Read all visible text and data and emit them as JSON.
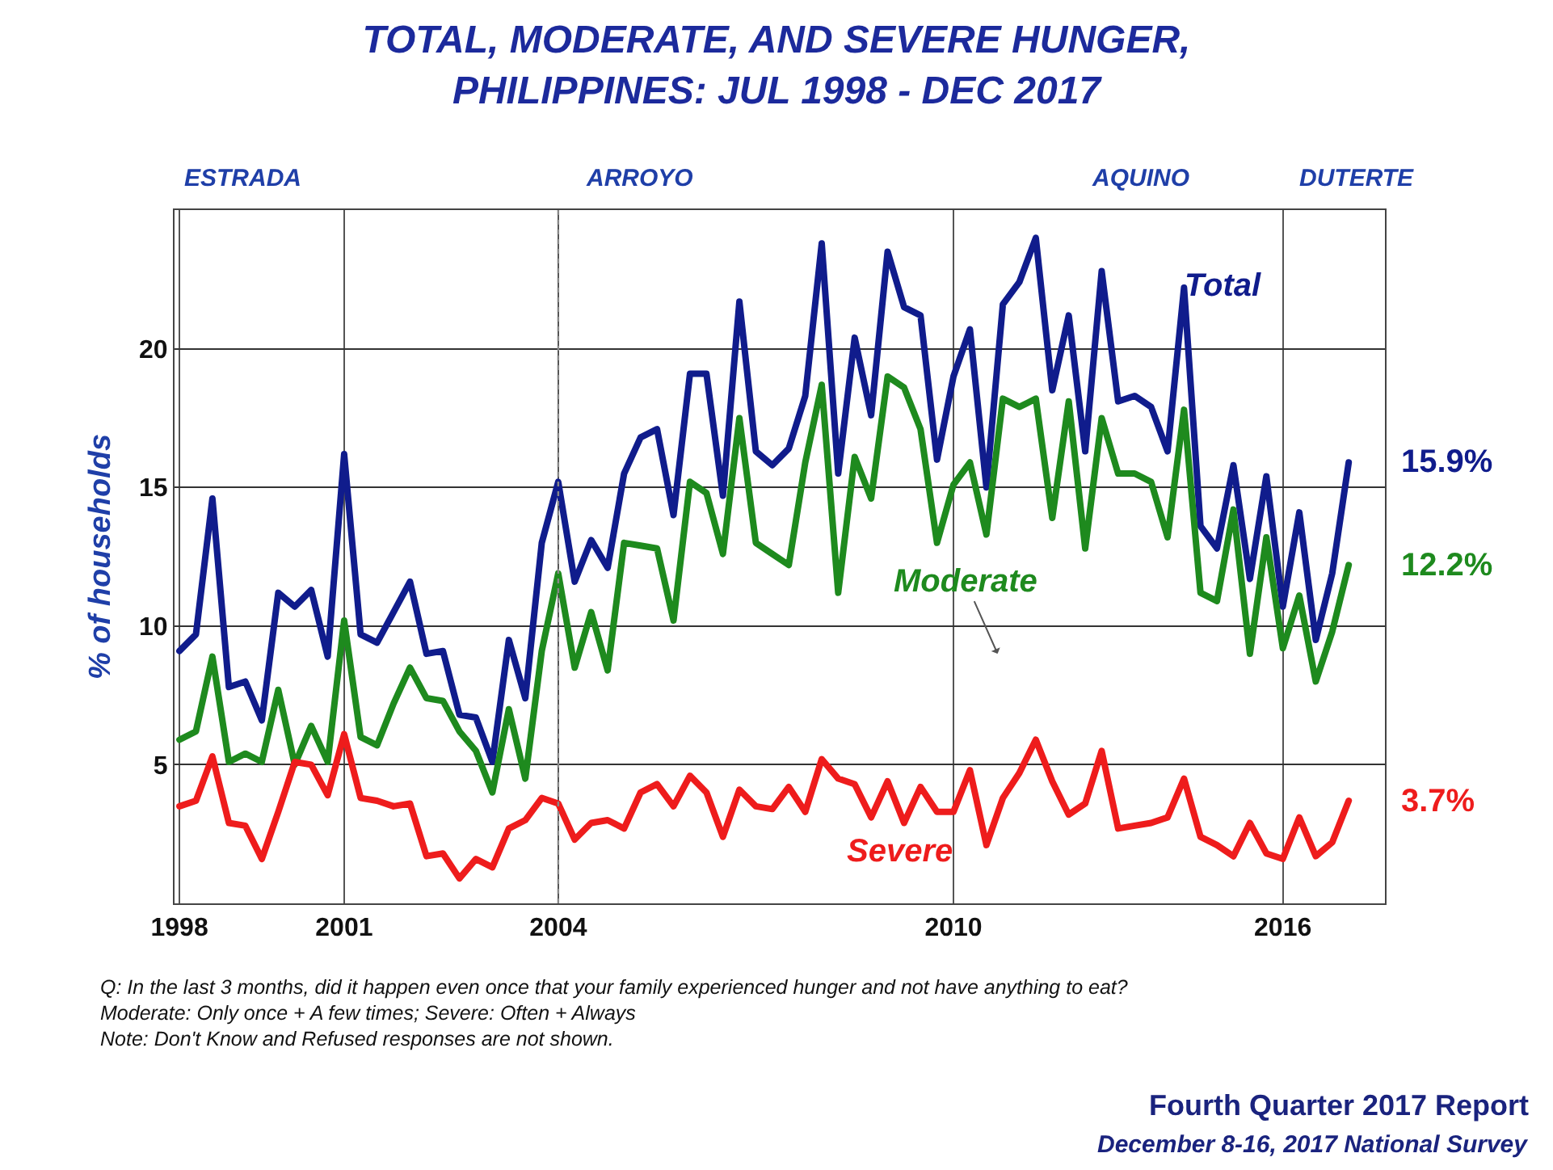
{
  "chart_data": {
    "type": "line",
    "title": "TOTAL, MODERATE, AND SEVERE HUNGER,\nPHILIPPINES: JUL 1998 - DEC 2017",
    "ylabel": "% of households",
    "categories": [
      "1998",
      null,
      null,
      null,
      null,
      null,
      null,
      null,
      null,
      null,
      "2001",
      null,
      null,
      null,
      null,
      null,
      null,
      null,
      null,
      null,
      null,
      null,
      null,
      "2004",
      null,
      null,
      null,
      null,
      null,
      null,
      null,
      null,
      null,
      null,
      null,
      null,
      null,
      null,
      null,
      null,
      null,
      null,
      null,
      null,
      null,
      null,
      null,
      "2010",
      null,
      null,
      null,
      null,
      null,
      null,
      null,
      null,
      null,
      null,
      null,
      null,
      null,
      null,
      null,
      null,
      null,
      null,
      null,
      "2016",
      null,
      null,
      null,
      null
    ],
    "series": [
      {
        "name": "Total",
        "color": "#101c8c",
        "values": [
          9.1,
          9.7,
          14.6,
          7.8,
          8.0,
          6.6,
          11.2,
          10.7,
          11.3,
          8.9,
          16.2,
          9.7,
          9.4,
          10.5,
          11.6,
          9.0,
          9.1,
          6.8,
          6.7,
          5.1,
          9.5,
          7.4,
          13.0,
          15.2,
          11.6,
          13.1,
          12.1,
          15.5,
          16.8,
          17.1,
          14.0,
          19.1,
          19.1,
          14.7,
          21.7,
          16.3,
          15.8,
          16.4,
          18.3,
          23.8,
          15.5,
          20.4,
          17.6,
          23.5,
          21.5,
          21.2,
          16.0,
          19.0,
          20.7,
          15.0,
          21.6,
          22.4,
          24.0,
          18.5,
          21.2,
          16.3,
          22.8,
          18.1,
          18.3,
          17.9,
          16.3,
          22.2,
          13.6,
          12.8,
          15.8,
          11.7,
          15.4,
          10.7,
          14.1,
          9.5,
          11.9,
          15.9
        ],
        "value_labels": [
          null,
          null,
          null,
          null,
          null,
          null,
          null,
          null,
          null,
          null,
          null,
          null,
          null,
          null,
          null,
          null,
          null,
          null,
          null,
          null,
          null,
          null,
          null,
          null,
          null,
          null,
          null,
          null,
          null,
          null,
          null,
          null,
          null,
          null,
          null,
          null,
          null,
          null,
          null,
          null,
          null,
          null,
          null,
          null,
          null,
          null,
          null,
          null,
          null,
          null,
          null,
          null,
          null,
          null,
          null,
          null,
          null,
          null,
          null,
          null,
          null,
          null,
          null,
          null,
          null,
          null,
          null,
          null,
          null,
          null,
          null,
          "15.9%"
        ]
      },
      {
        "name": "Moderate",
        "color": "#1e8a1e",
        "values": [
          5.9,
          6.2,
          8.9,
          5.1,
          5.4,
          5.1,
          7.7,
          5.0,
          6.4,
          5.1,
          10.2,
          6.0,
          5.7,
          7.2,
          8.5,
          7.4,
          7.3,
          6.2,
          5.5,
          4.0,
          7.0,
          4.5,
          9.1,
          11.9,
          8.5,
          10.5,
          8.4,
          13.0,
          12.9,
          12.8,
          10.2,
          15.2,
          14.8,
          12.6,
          17.5,
          13.0,
          12.6,
          12.2,
          15.9,
          18.7,
          11.2,
          16.1,
          14.6,
          19.0,
          18.6,
          17.1,
          13.0,
          15.1,
          15.9,
          13.3,
          18.2,
          17.9,
          18.2,
          13.9,
          18.1,
          12.8,
          17.5,
          15.5,
          15.5,
          15.2,
          13.2,
          17.8,
          11.2,
          10.9,
          14.2,
          9.0,
          13.2,
          9.2,
          11.1,
          8.0,
          9.8,
          12.2
        ],
        "value_labels": [
          null,
          null,
          null,
          null,
          null,
          null,
          null,
          null,
          null,
          null,
          null,
          null,
          null,
          null,
          null,
          null,
          null,
          null,
          null,
          null,
          null,
          null,
          null,
          null,
          null,
          null,
          null,
          null,
          null,
          null,
          null,
          null,
          null,
          null,
          null,
          null,
          null,
          null,
          null,
          null,
          null,
          null,
          null,
          null,
          null,
          null,
          null,
          null,
          null,
          null,
          null,
          null,
          null,
          null,
          null,
          null,
          null,
          null,
          null,
          null,
          null,
          null,
          null,
          null,
          null,
          null,
          null,
          null,
          null,
          null,
          null,
          "12.2%"
        ]
      },
      {
        "name": "Severe",
        "color": "#ee1c1c",
        "values": [
          3.5,
          3.7,
          5.3,
          2.9,
          2.8,
          1.6,
          3.3,
          5.1,
          5.0,
          3.9,
          6.1,
          3.8,
          3.7,
          3.5,
          3.6,
          1.7,
          1.8,
          0.9,
          1.6,
          1.3,
          2.7,
          3.0,
          3.8,
          3.6,
          2.3,
          2.9,
          3.0,
          2.7,
          4.0,
          4.3,
          3.5,
          4.6,
          4.0,
          2.4,
          4.1,
          3.5,
          3.4,
          4.2,
          3.3,
          5.2,
          4.5,
          4.3,
          3.1,
          4.4,
          2.9,
          4.2,
          3.3,
          3.3,
          4.8,
          2.1,
          3.8,
          4.7,
          5.9,
          4.4,
          3.2,
          3.6,
          5.5,
          2.7,
          2.8,
          2.9,
          3.1,
          4.5,
          2.4,
          2.1,
          1.7,
          2.9,
          1.8,
          1.6,
          3.1,
          1.7,
          2.2,
          3.7
        ],
        "value_labels": [
          null,
          null,
          null,
          null,
          null,
          null,
          null,
          null,
          null,
          null,
          null,
          null,
          null,
          null,
          null,
          null,
          null,
          null,
          null,
          null,
          null,
          null,
          null,
          null,
          null,
          null,
          null,
          null,
          null,
          null,
          null,
          null,
          null,
          null,
          null,
          null,
          null,
          null,
          null,
          null,
          null,
          null,
          null,
          null,
          null,
          null,
          null,
          null,
          null,
          null,
          null,
          null,
          null,
          null,
          null,
          null,
          null,
          null,
          null,
          null,
          null,
          null,
          null,
          null,
          null,
          null,
          null,
          null,
          null,
          null,
          null,
          "3.7%"
        ]
      }
    ],
    "ylim": [
      0,
      25
    ],
    "yticks": [
      5,
      10,
      15,
      20
    ],
    "grid": true,
    "legend": false,
    "marker": "none",
    "line_style": "solid",
    "ref_lines": [
      {
        "axis": "x",
        "value": "2004",
        "color": "#888888",
        "line_style": "dotted"
      }
    ],
    "annotations": [
      "ESTRADA",
      "ARROYO",
      "AQUINO",
      "DUTERTE",
      "Q: In the last 3 months, did it happen even once that your family experienced hunger and not have anything to eat?",
      "Moderate: Only once + A few times; Severe: Often + Always",
      "Note: Don't Know and Refused responses are not shown.",
      "Fourth Quarter 2017 Report",
      "December 8-16, 2017 National Survey"
    ]
  }
}
